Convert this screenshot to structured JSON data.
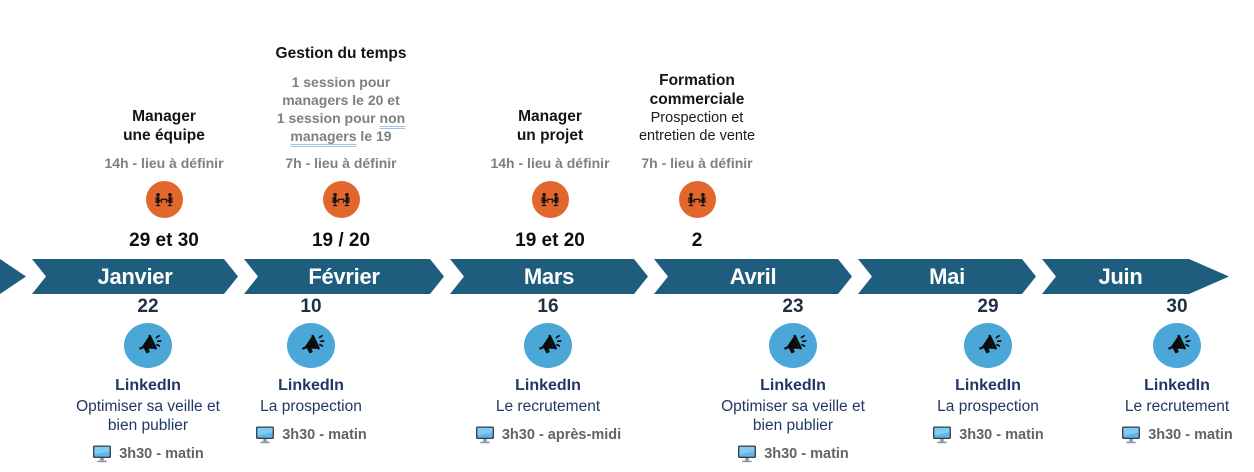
{
  "colors": {
    "band": "#1E5D7D",
    "orange_badge": "#E2672D",
    "blue_badge": "#4AA7D7",
    "navy_text": "#1F3864",
    "gray_text": "#7F7F7F",
    "underline_blue": "#9DC3E6"
  },
  "timeline": {
    "months": [
      "Janvier",
      "Février",
      "Mars",
      "Avril",
      "Mai",
      "Juin"
    ]
  },
  "top_events": [
    {
      "month": "Janvier",
      "title_lines": [
        "Manager",
        "une équipe"
      ],
      "desc_lines": [],
      "note_lines": [],
      "schedule": "14h - lieu à définir",
      "icon": "meeting-icon",
      "date": "29 et 30"
    },
    {
      "month": "Février",
      "title_lines": [
        "Gestion du temps"
      ],
      "desc_lines": [],
      "note_lines": [
        [
          "1 session pour"
        ],
        [
          "managers le 20 et"
        ],
        [
          "1 session pour ",
          {
            "u": "non"
          }
        ],
        [
          {
            "u": "managers"
          },
          " le 19"
        ]
      ],
      "schedule": "7h - lieu à définir",
      "icon": "meeting-icon",
      "date": "19 / 20"
    },
    {
      "month": "Mars",
      "title_lines": [
        "Manager",
        "un projet"
      ],
      "desc_lines": [],
      "note_lines": [],
      "schedule": "14h - lieu à définir",
      "icon": "meeting-icon",
      "date": "19 et 20"
    },
    {
      "month": "Avril",
      "title_lines": [
        "Formation",
        "commerciale"
      ],
      "desc_lines": [
        "Prospection et",
        "entretien de vente"
      ],
      "note_lines": [],
      "schedule": "7h - lieu à définir",
      "icon": "meeting-icon",
      "date": "2"
    }
  ],
  "bottom_events": [
    {
      "month": "Janvier",
      "date": "22",
      "icon": "megaphone-icon",
      "platform": "LinkedIn",
      "topic_lines": [
        "Optimiser sa veille et",
        "bien publier"
      ],
      "session": "3h30 - matin"
    },
    {
      "month": "Février",
      "date": "10",
      "icon": "megaphone-icon",
      "platform": "LinkedIn",
      "topic_lines": [
        "La prospection"
      ],
      "session": "3h30 - matin"
    },
    {
      "month": "Mars",
      "date": "16",
      "icon": "megaphone-icon",
      "platform": "LinkedIn",
      "topic_lines": [
        "Le recrutement"
      ],
      "session": "3h30 - après-midi"
    },
    {
      "month": "Avril",
      "date": "23",
      "icon": "megaphone-icon",
      "platform": "LinkedIn",
      "topic_lines": [
        "Optimiser sa veille et",
        "bien publier"
      ],
      "session": "3h30 - matin"
    },
    {
      "month": "Mai",
      "date": "29",
      "icon": "megaphone-icon",
      "platform": "LinkedIn",
      "topic_lines": [
        "La prospection"
      ],
      "session": "3h30 - matin"
    },
    {
      "month": "Juin",
      "date": "30",
      "icon": "megaphone-icon",
      "platform": "LinkedIn",
      "topic_lines": [
        "Le recrutement"
      ],
      "session": "3h30 - matin"
    }
  ]
}
